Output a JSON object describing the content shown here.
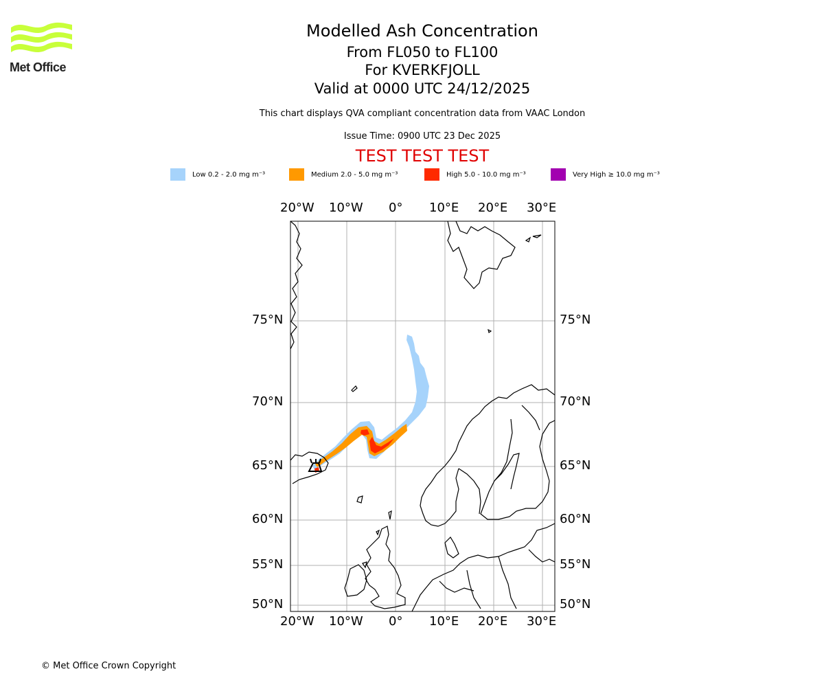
{
  "logo": {
    "text": "Met Office"
  },
  "title": {
    "main": "Modelled Ash Concentration",
    "levels": "From FL050 to FL100",
    "volcano": "For KVERKFJOLL",
    "valid": "Valid at 0000 UTC 24/12/2025"
  },
  "subtitle": "This chart displays QVA compliant concentration data from VAAC London",
  "issue_time": "Issue Time: 0900 UTC 23 Dec 2025",
  "test_banner": "TEST TEST TEST",
  "legend": [
    {
      "label": "Low 0.2 - 2.0 mg m⁻³",
      "color": "#a6d3fb"
    },
    {
      "label": "Medium 2.0 - 5.0 mg m⁻³",
      "color": "#ff9900"
    },
    {
      "label": "High 5.0 - 10.0 mg m⁻³",
      "color": "#ff2a00"
    },
    {
      "label": "Very High  ≥  10.0 mg m⁻³",
      "color": "#a200b0"
    }
  ],
  "map": {
    "lon_ticks": [
      "20°W",
      "10°W",
      "0°",
      "10°E",
      "20°E",
      "30°E"
    ],
    "lat_ticks": [
      "75°N",
      "70°N",
      "65°N",
      "60°N",
      "55°N",
      "50°N"
    ]
  },
  "copyright": "© Met Office Crown Copyright"
}
